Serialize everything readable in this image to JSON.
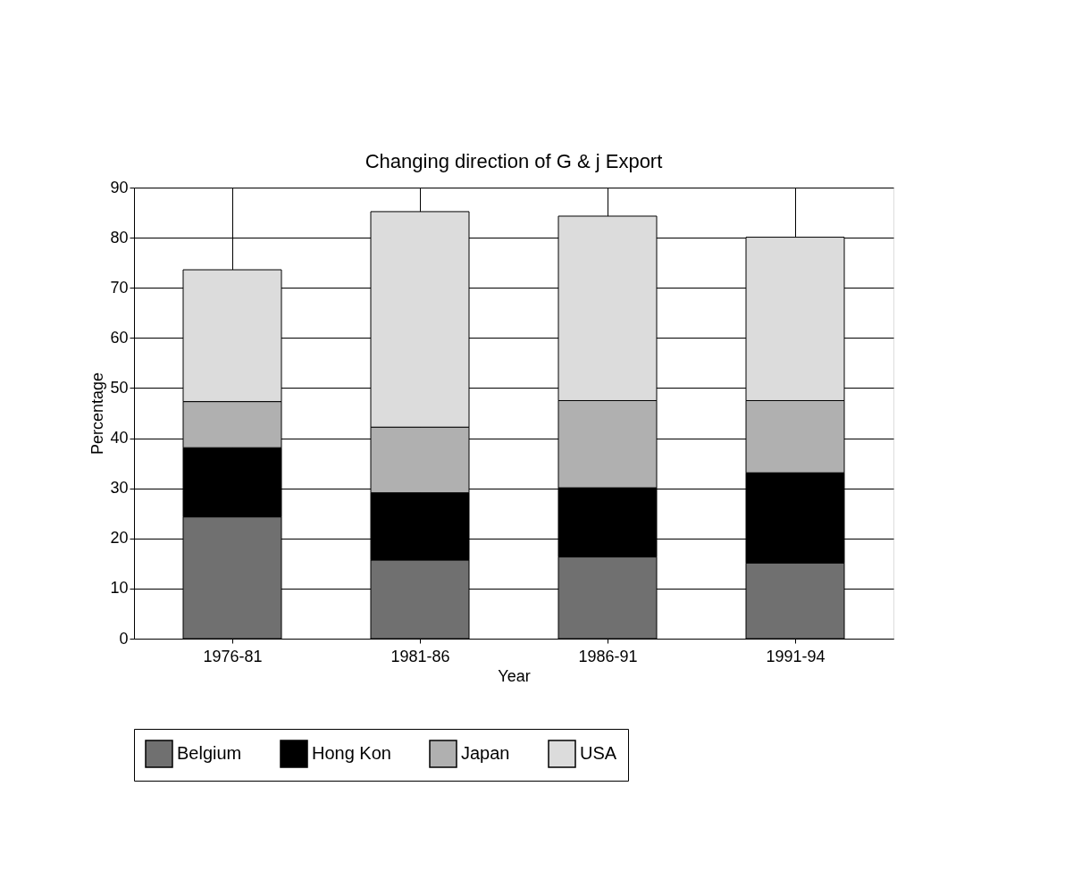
{
  "chart_data": {
    "type": "bar",
    "stacked": true,
    "title": "Changing direction of G & j Export",
    "xlabel": "Year",
    "ylabel": "Percentage",
    "categories": [
      "1976-81",
      "1981-86",
      "1986-91",
      "1991-94"
    ],
    "series": [
      {
        "name": "Belgium",
        "color": "#707070",
        "values": [
          24.3,
          15.7,
          16.3,
          15.1
        ]
      },
      {
        "name": "Hong Kon",
        "color": "#000000",
        "values": [
          13.8,
          13.4,
          13.8,
          18.0
        ]
      },
      {
        "name": "Japan",
        "color": "#b0b0b0",
        "values": [
          9.2,
          13.1,
          17.4,
          14.4
        ]
      },
      {
        "name": "USA",
        "color": "#dcdcdc",
        "values": [
          26.3,
          43.0,
          36.8,
          32.6
        ]
      }
    ],
    "ylim": [
      0,
      90
    ],
    "yticks": [
      0,
      10,
      20,
      30,
      40,
      50,
      60,
      70,
      80,
      90
    ],
    "grid": true,
    "legend": "bottom"
  }
}
